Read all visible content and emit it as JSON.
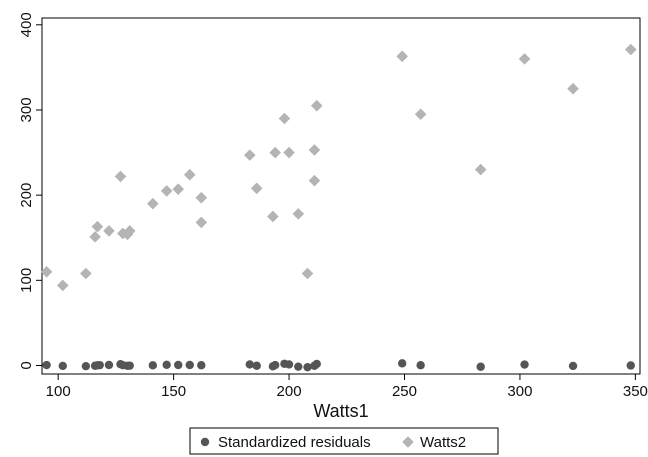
{
  "chart_data": {
    "type": "scatter",
    "title": "",
    "xlabel": "Watts1",
    "ylabel": "",
    "xlim": [
      93,
      352
    ],
    "ylim": [
      -10,
      408
    ],
    "xticks": [
      100,
      150,
      200,
      250,
      300,
      350
    ],
    "yticks": [
      0,
      100,
      200,
      300,
      400
    ],
    "grid": false,
    "legend_position": "bottom-center",
    "series": [
      {
        "name": "Standardized residuals",
        "marker": "circle",
        "color": "#555555",
        "x": [
          95,
          102,
          112,
          116,
          117,
          118,
          122,
          127,
          128,
          130,
          131,
          141,
          147,
          152,
          157,
          162,
          183,
          186,
          193,
          194,
          198,
          200,
          204,
          208,
          211,
          212,
          249,
          257,
          283,
          302,
          323,
          348
        ],
        "y": [
          0.5,
          -0.5,
          -0.8,
          -0.3,
          0.2,
          0.4,
          0.6,
          1.5,
          0.4,
          -0.4,
          -0.2,
          0.2,
          0.8,
          0.6,
          0.6,
          0.3,
          1.2,
          -0.3,
          -1.0,
          0.5,
          2.0,
          1.2,
          -1.4,
          -2.0,
          -0.3,
          1.8,
          2.5,
          0.3,
          -1.5,
          1.1,
          -0.5,
          0.0
        ]
      },
      {
        "name": "Watts2",
        "marker": "diamond",
        "color": "#b4b4b4",
        "x": [
          95,
          102,
          112,
          116,
          117,
          122,
          127,
          128,
          130,
          131,
          141,
          147,
          152,
          157,
          162,
          162,
          183,
          186,
          193,
          194,
          198,
          200,
          204,
          208,
          211,
          211,
          212,
          249,
          257,
          283,
          302,
          323,
          348
        ],
        "y": [
          110,
          94,
          108,
          151,
          163,
          158,
          222,
          155,
          154,
          158,
          190,
          205,
          207,
          224,
          197,
          168,
          247,
          208,
          175,
          250,
          290,
          250,
          178,
          108,
          217,
          253,
          305,
          363,
          295,
          230,
          360,
          325,
          371
        ]
      }
    ]
  }
}
